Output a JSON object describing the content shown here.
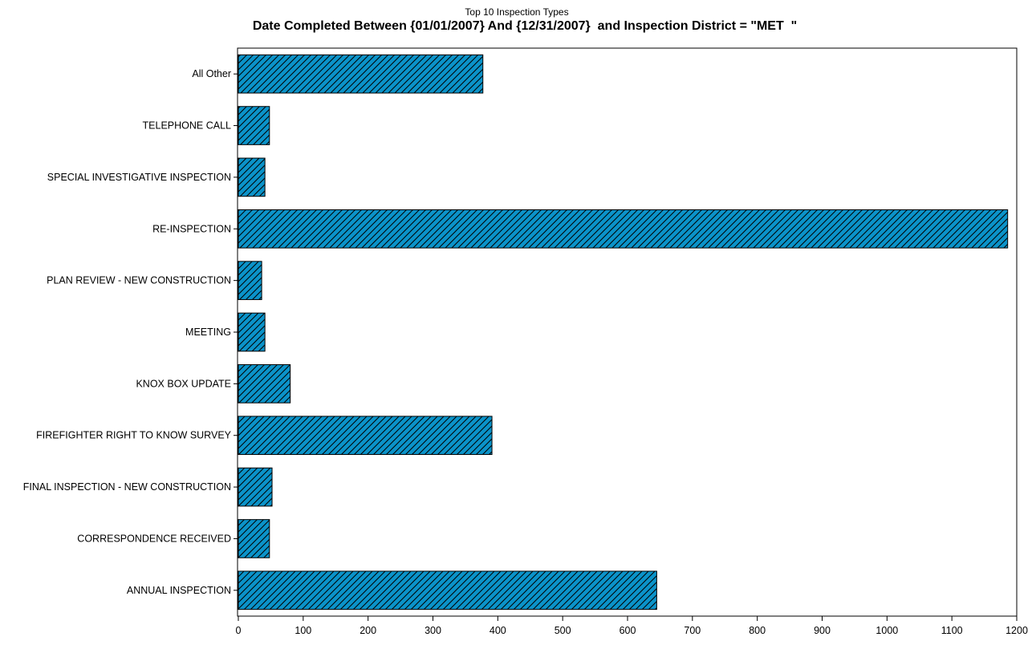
{
  "chart_data": {
    "type": "bar",
    "orientation": "horizontal",
    "title": "Top 10 Inspection Types",
    "subtitle": "Date Completed Between {01/01/2007} And {12/31/2007}  and Inspection District = \"MET  \"",
    "xlabel": "",
    "ylabel": "",
    "xlim": [
      0,
      1200
    ],
    "x_ticks": [
      0,
      100,
      200,
      300,
      400,
      500,
      600,
      700,
      800,
      900,
      1000,
      1100,
      1200
    ],
    "categories": [
      "All Other",
      "TELEPHONE CALL",
      "SPECIAL INVESTIGATIVE INSPECTION",
      "RE-INSPECTION",
      "PLAN REVIEW - NEW CONSTRUCTION",
      "MEETING",
      "KNOX BOX UPDATE",
      "FIREFIGHTER RIGHT TO KNOW SURVEY",
      "FINAL INSPECTION - NEW CONSTRUCTION",
      "CORRESPONDENCE RECEIVED",
      "ANNUAL INSPECTION"
    ],
    "values": [
      377,
      48,
      41,
      1186,
      36,
      41,
      80,
      391,
      52,
      48,
      645
    ],
    "bar_color": "#0b93c9",
    "bar_pattern": "diagonal-hatch",
    "grid": false,
    "legend": "none"
  }
}
